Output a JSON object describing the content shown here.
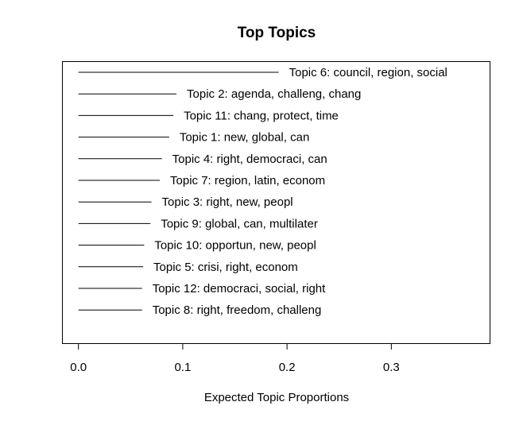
{
  "chart_data": {
    "type": "bar",
    "orientation": "horizontal",
    "title": "Top Topics",
    "xlabel": "Expected Topic Proportions",
    "ylabel": "",
    "xlim": [
      -0.015,
      0.395
    ],
    "xticks": [
      0.0,
      0.1,
      0.2,
      0.3
    ],
    "xtick_labels": [
      "0.0",
      "0.1",
      "0.2",
      "0.3"
    ],
    "grid": false,
    "legend": "none",
    "categories": [
      "Topic 6: council, region, social",
      "Topic 2: agenda, challeng, chang",
      "Topic 11: chang, protect, time",
      "Topic 1: new, global, can",
      "Topic 4: right, democraci, can",
      "Topic 7: region, latin, econom",
      "Topic 3: right, new, peopl",
      "Topic 9: global, can, multilater",
      "Topic 10: opportun, new, peopl",
      "Topic 5: crisi, right, econom",
      "Topic 12: democraci, social, right",
      "Topic 8: right, freedom, challeng"
    ],
    "values": [
      0.192,
      0.094,
      0.091,
      0.087,
      0.08,
      0.078,
      0.07,
      0.069,
      0.063,
      0.062,
      0.061,
      0.061
    ],
    "bar_color": "#000000"
  }
}
